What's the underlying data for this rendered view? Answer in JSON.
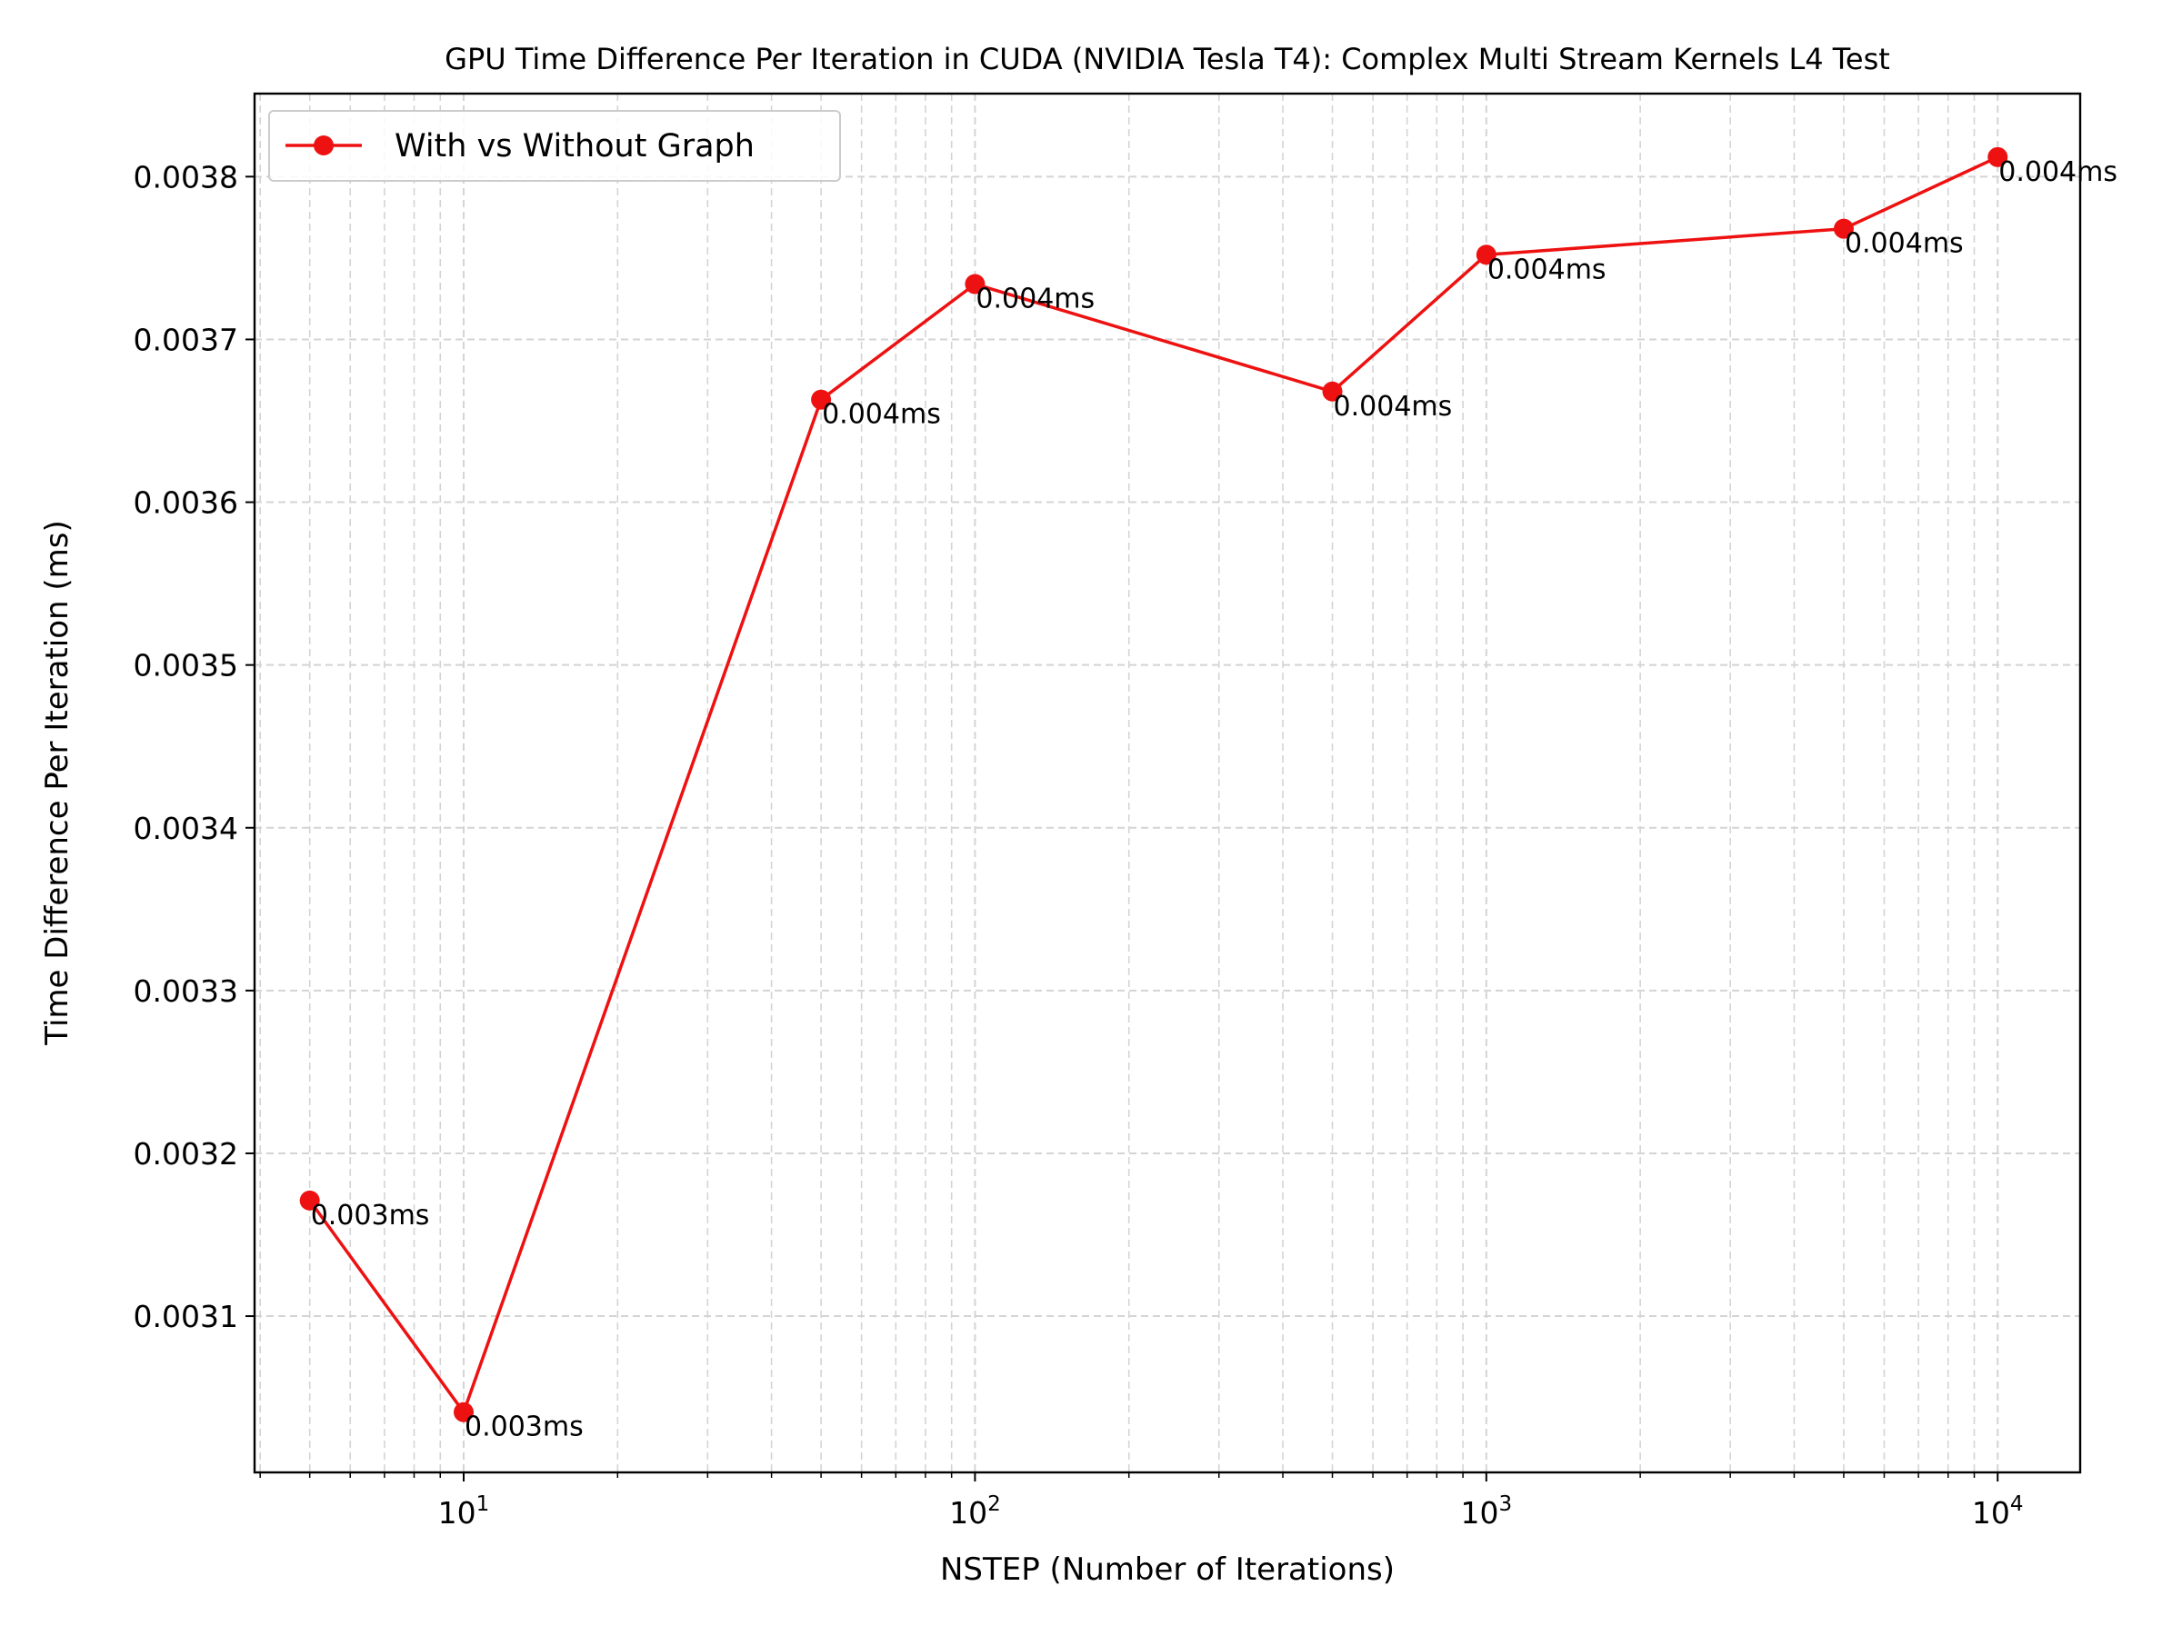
{
  "chart_data": {
    "type": "line",
    "title": "GPU Time Difference Per Iteration in CUDA (NVIDIA Tesla T4): Complex Multi Stream Kernels L4 Test",
    "xlabel": "NSTEP (Number of Iterations)",
    "ylabel": "Time Difference Per Iteration (ms)",
    "x_scale": "log",
    "x_range": [
      3.9,
      14500
    ],
    "y_range": [
      0.003004,
      0.003851
    ],
    "x_ticks": [
      {
        "value": 10,
        "base": "10",
        "exp": "1"
      },
      {
        "value": 100,
        "base": "10",
        "exp": "2"
      },
      {
        "value": 1000,
        "base": "10",
        "exp": "3"
      },
      {
        "value": 10000,
        "base": "10",
        "exp": "4"
      }
    ],
    "y_ticks": [
      {
        "value": 0.0031,
        "label": "0.0031"
      },
      {
        "value": 0.0032,
        "label": "0.0032"
      },
      {
        "value": 0.0033,
        "label": "0.0033"
      },
      {
        "value": 0.0034,
        "label": "0.0034"
      },
      {
        "value": 0.0035,
        "label": "0.0035"
      },
      {
        "value": 0.0036,
        "label": "0.0036"
      },
      {
        "value": 0.0037,
        "label": "0.0037"
      },
      {
        "value": 0.0038,
        "label": "0.0038"
      }
    ],
    "grid": true,
    "grid_style": "dashed",
    "legend_position": "upper left",
    "series": [
      {
        "name": "With vs Without Graph",
        "color": "#ee1111",
        "marker": "circle",
        "x": [
          5,
          10,
          50,
          100,
          500,
          1000,
          5000,
          10000
        ],
        "y": [
          0.003171,
          0.003041,
          0.003663,
          0.003734,
          0.003668,
          0.003752,
          0.003768,
          0.003812
        ],
        "point_labels": [
          "0.003ms",
          "0.003ms",
          "0.004ms",
          "0.004ms",
          "0.004ms",
          "0.004ms",
          "0.004ms",
          "0.004ms"
        ]
      }
    ]
  }
}
